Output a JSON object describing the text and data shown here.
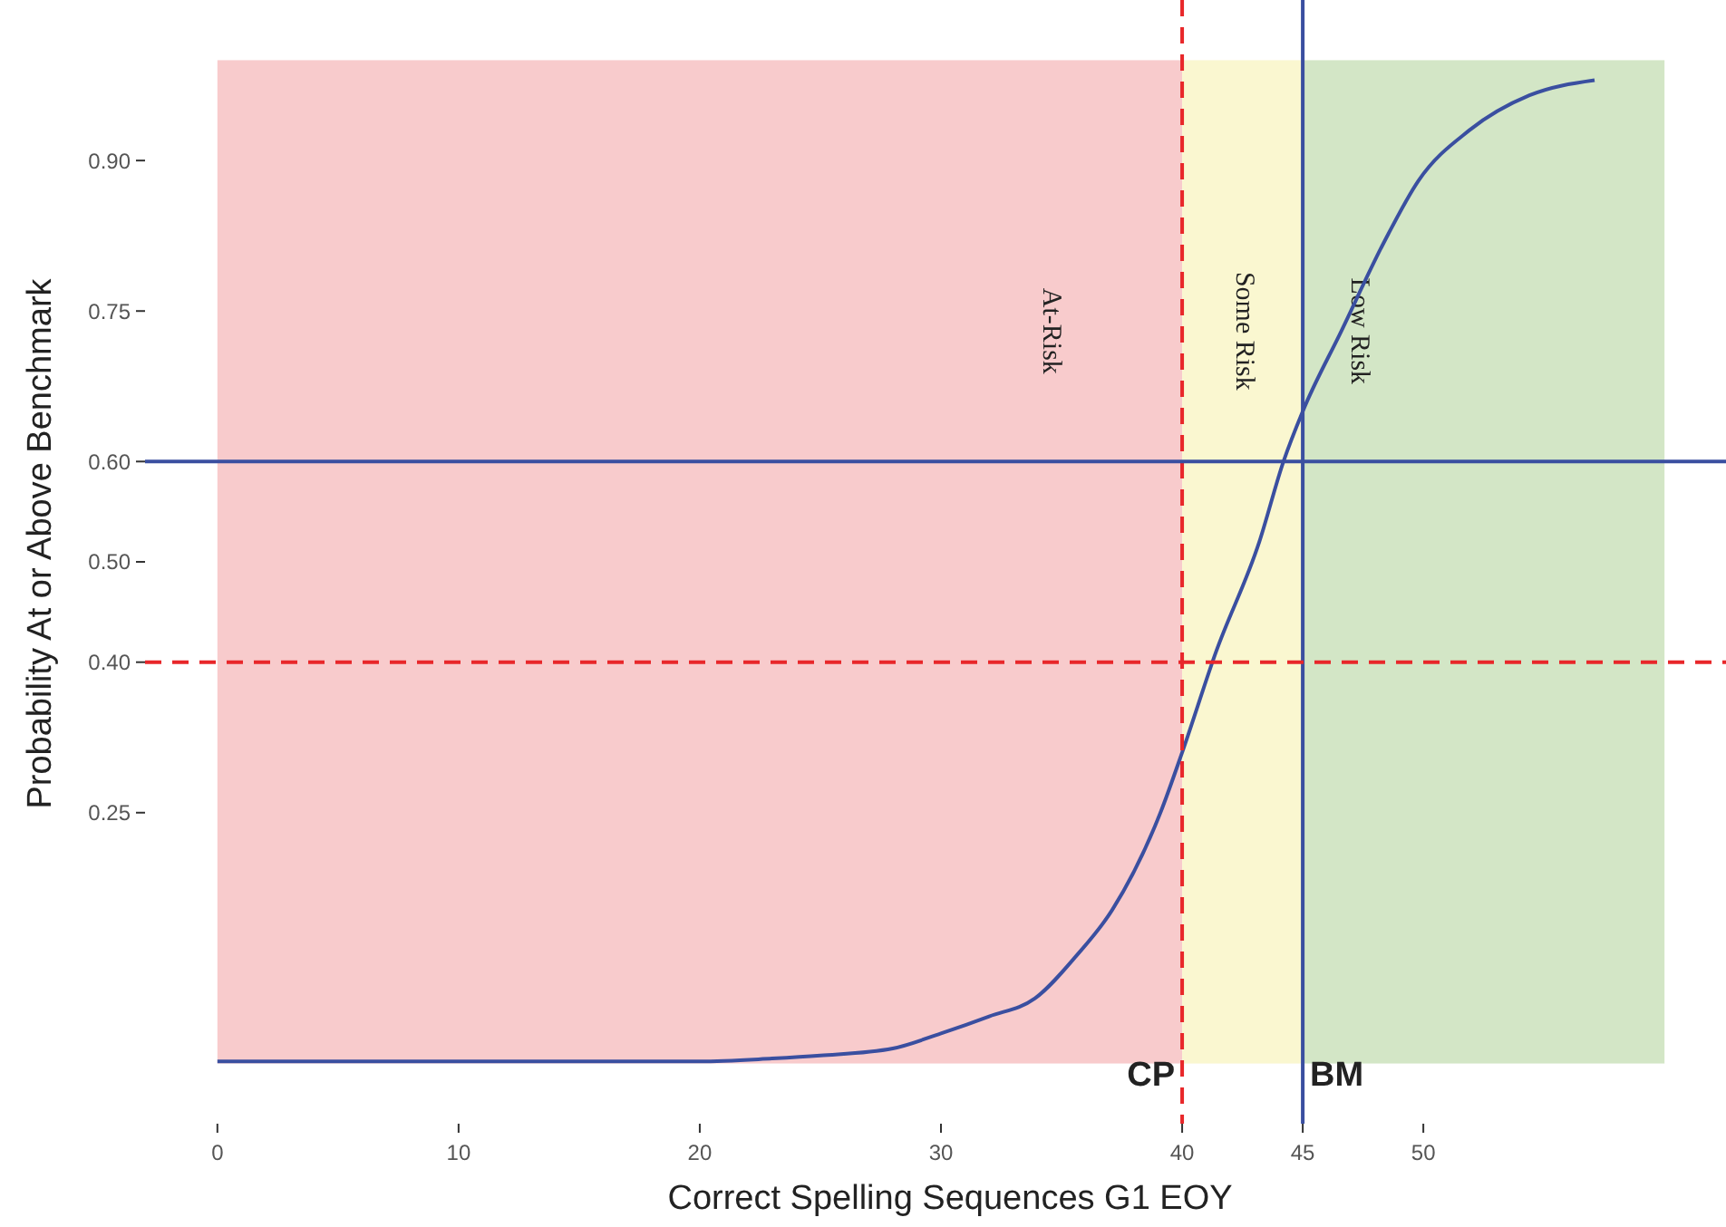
{
  "chart_data": {
    "type": "line",
    "xlabel": "Correct Spelling Sequences G1 EOY",
    "ylabel": "Probability At or Above Benchmark",
    "x": [
      0,
      10,
      20,
      23,
      25,
      28,
      30,
      32,
      33.9,
      35.6,
      37.1,
      39.1,
      40,
      41.4,
      43.2,
      44.2,
      45,
      46.6,
      48.4,
      49.8,
      51.9,
      54.4,
      57.1
    ],
    "series": [
      {
        "color": "#3a4fa0",
        "values": [
          0.002,
          0.002,
          0.002,
          0.005,
          0.008,
          0.015,
          0.03,
          0.047,
          0.065,
          0.107,
          0.153,
          0.25,
          0.31,
          0.41,
          0.52,
          0.6,
          0.65,
          0.73,
          0.82,
          0.88,
          0.93,
          0.965,
          0.98
        ]
      }
    ],
    "xlim": [
      -3,
      63
    ],
    "ylim": [
      -0.06,
      1.06
    ],
    "xticks": [
      0,
      10,
      20,
      30,
      40,
      45,
      50
    ],
    "yticks": [
      {
        "value": 0.25,
        "label": "0.25"
      },
      {
        "value": 0.4,
        "label": "0.40"
      },
      {
        "value": 0.5,
        "label": "0.50"
      },
      {
        "value": 0.6,
        "label": "0.60"
      },
      {
        "value": 0.75,
        "label": "0.75"
      },
      {
        "value": 0.9,
        "label": "0.90"
      }
    ],
    "bands": [
      {
        "axis": "x",
        "from": 0,
        "to": 40,
        "color": "#f8cbcc",
        "label": "At-Risk"
      },
      {
        "axis": "x",
        "from": 40,
        "to": 45,
        "color": "#faf7d0",
        "label": "Some Risk"
      },
      {
        "axis": "x",
        "from": 45,
        "to": 60,
        "color": "#d3e6c6",
        "label": "Low Risk"
      }
    ],
    "ref_lines": [
      {
        "axis": "x",
        "value": 40,
        "label": "CP",
        "color": "#e8272a",
        "line_style": "dashed"
      },
      {
        "axis": "x",
        "value": 45,
        "label": "BM",
        "color": "#3a4fa0",
        "line_style": "solid"
      },
      {
        "axis": "y",
        "value": 0.6,
        "color": "#3a4fa0",
        "line_style": "solid"
      },
      {
        "axis": "y",
        "value": 0.4,
        "color": "#e8272a",
        "line_style": "dashed"
      }
    ],
    "grid": false,
    "marker": "none",
    "line_style": "solid"
  }
}
